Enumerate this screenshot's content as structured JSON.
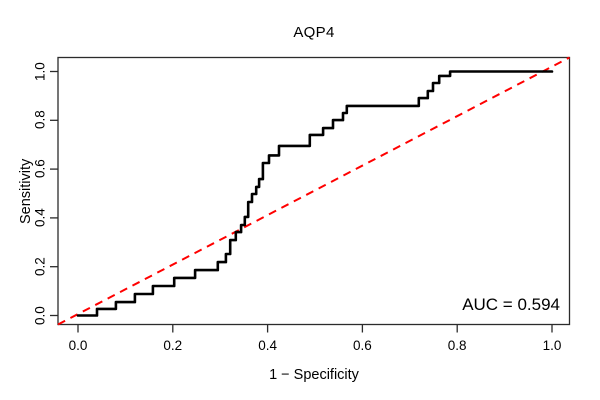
{
  "figure": {
    "title": "AQP4",
    "xlabel": "1 − Specificity",
    "ylabel": "Sensitivity",
    "auc_text": "AUC = 0.594"
  },
  "axes": {
    "x_tick_labels": [
      "0.0",
      "0.2",
      "0.4",
      "0.6",
      "0.8",
      "1.0"
    ],
    "x_tick_values": [
      0,
      0.2,
      0.4,
      0.6,
      0.8,
      1.0
    ],
    "y_tick_labels": [
      "0.0",
      "0.2",
      "0.4",
      "0.6",
      "0.8",
      "1.0"
    ],
    "y_tick_values": [
      0,
      0.2,
      0.4,
      0.6,
      0.8,
      1.0
    ]
  },
  "colors": {
    "roc_curve": "#000000",
    "chance_line": "#ff0000",
    "frame": "#2b2b2b",
    "text": "#000000",
    "background": "#ffffff"
  },
  "chart_data": {
    "type": "line",
    "subtype": "roc-step-curve",
    "title": "AQP4",
    "xlabel": "1 − Specificity",
    "ylabel": "Sensitivity",
    "xlim": [
      -0.042,
      1.036
    ],
    "ylim": [
      -0.037,
      1.058
    ],
    "grid": false,
    "legend": "none",
    "auc": 0.594,
    "annotation": {
      "text": "AUC = 0.594",
      "position": "bottom-right"
    },
    "reference_line": {
      "type": "diagonal",
      "slope": 1,
      "intercept": 0,
      "style": "dashed",
      "color": "#ff0000"
    },
    "series": [
      {
        "name": "ROC curve (AQP4)",
        "color": "#000000",
        "step": true,
        "points": [
          [
            0.0,
            0.0
          ],
          [
            0.04,
            0.0
          ],
          [
            0.04,
            0.027
          ],
          [
            0.08,
            0.027
          ],
          [
            0.08,
            0.055
          ],
          [
            0.12,
            0.055
          ],
          [
            0.12,
            0.088
          ],
          [
            0.158,
            0.088
          ],
          [
            0.158,
            0.121
          ],
          [
            0.203,
            0.121
          ],
          [
            0.203,
            0.154
          ],
          [
            0.247,
            0.154
          ],
          [
            0.247,
            0.186
          ],
          [
            0.295,
            0.186
          ],
          [
            0.295,
            0.219
          ],
          [
            0.312,
            0.219
          ],
          [
            0.312,
            0.252
          ],
          [
            0.321,
            0.252
          ],
          [
            0.321,
            0.309
          ],
          [
            0.333,
            0.309
          ],
          [
            0.333,
            0.342
          ],
          [
            0.344,
            0.342
          ],
          [
            0.344,
            0.371
          ],
          [
            0.352,
            0.371
          ],
          [
            0.352,
            0.404
          ],
          [
            0.359,
            0.404
          ],
          [
            0.359,
            0.465
          ],
          [
            0.367,
            0.465
          ],
          [
            0.367,
            0.498
          ],
          [
            0.376,
            0.498
          ],
          [
            0.376,
            0.527
          ],
          [
            0.382,
            0.527
          ],
          [
            0.382,
            0.559
          ],
          [
            0.39,
            0.559
          ],
          [
            0.39,
            0.625
          ],
          [
            0.403,
            0.625
          ],
          [
            0.403,
            0.656
          ],
          [
            0.424,
            0.656
          ],
          [
            0.424,
            0.695
          ],
          [
            0.489,
            0.695
          ],
          [
            0.489,
            0.74
          ],
          [
            0.517,
            0.74
          ],
          [
            0.517,
            0.768
          ],
          [
            0.538,
            0.768
          ],
          [
            0.538,
            0.801
          ],
          [
            0.559,
            0.801
          ],
          [
            0.559,
            0.83
          ],
          [
            0.567,
            0.83
          ],
          [
            0.567,
            0.859
          ],
          [
            0.719,
            0.859
          ],
          [
            0.719,
            0.891
          ],
          [
            0.738,
            0.891
          ],
          [
            0.738,
            0.92
          ],
          [
            0.749,
            0.92
          ],
          [
            0.749,
            0.953
          ],
          [
            0.762,
            0.953
          ],
          [
            0.762,
            0.982
          ],
          [
            0.774,
            0.982
          ],
          [
            0.785,
            0.982
          ],
          [
            0.785,
            1.0
          ],
          [
            1.0,
            1.0
          ]
        ]
      }
    ]
  }
}
